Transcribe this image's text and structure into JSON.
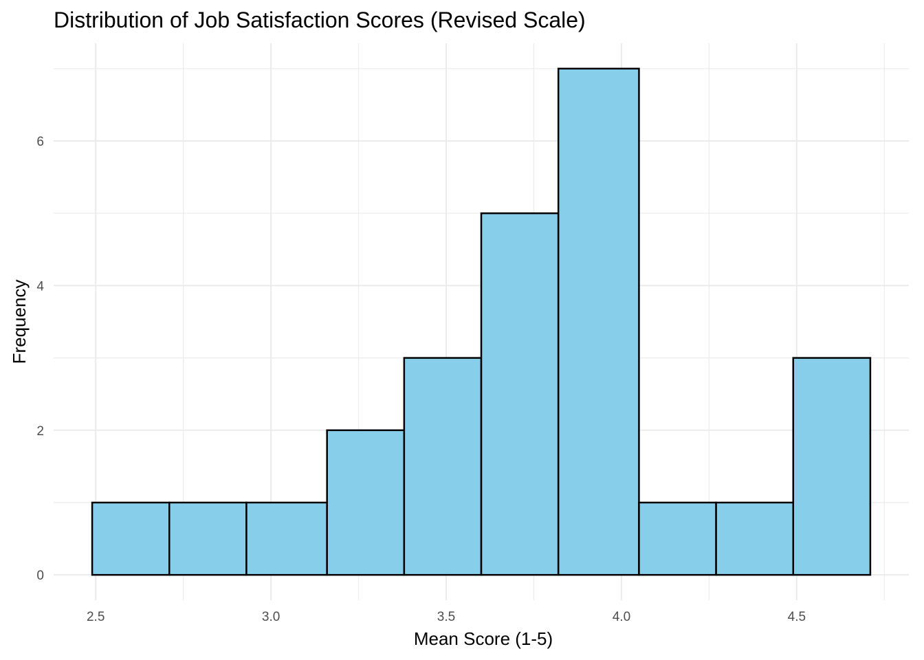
{
  "chart_data": {
    "type": "bar",
    "subtype": "histogram",
    "title": "Distribution of Job Satisfaction Scores (Revised Scale)",
    "xlabel": "Mean Score (1-5)",
    "ylabel": "Frequency",
    "bins": [
      {
        "x0": 2.49,
        "x1": 2.71,
        "count": 1
      },
      {
        "x0": 2.71,
        "x1": 2.93,
        "count": 1
      },
      {
        "x0": 2.93,
        "x1": 3.16,
        "count": 1
      },
      {
        "x0": 3.16,
        "x1": 3.38,
        "count": 2
      },
      {
        "x0": 3.38,
        "x1": 3.6,
        "count": 3
      },
      {
        "x0": 3.6,
        "x1": 3.82,
        "count": 5
      },
      {
        "x0": 3.82,
        "x1": 4.05,
        "count": 7
      },
      {
        "x0": 4.05,
        "x1": 4.27,
        "count": 1
      },
      {
        "x0": 4.27,
        "x1": 4.49,
        "count": 1
      },
      {
        "x0": 4.49,
        "x1": 4.71,
        "count": 3
      }
    ],
    "xlim": [
      2.38,
      4.82
    ],
    "ylim": [
      -0.35,
      7.35
    ],
    "x_ticks": [
      {
        "value": 2.5,
        "label": "2.5"
      },
      {
        "value": 3.0,
        "label": "3.0"
      },
      {
        "value": 3.5,
        "label": "3.5"
      },
      {
        "value": 4.0,
        "label": "4.0"
      },
      {
        "value": 4.5,
        "label": "4.5"
      }
    ],
    "y_ticks": [
      {
        "value": 0,
        "label": "0"
      },
      {
        "value": 2,
        "label": "2"
      },
      {
        "value": 4,
        "label": "4"
      },
      {
        "value": 6,
        "label": "6"
      }
    ],
    "fill_color": "#87CEEB",
    "edge_color": "#000000",
    "grid": true,
    "legend": "none"
  }
}
